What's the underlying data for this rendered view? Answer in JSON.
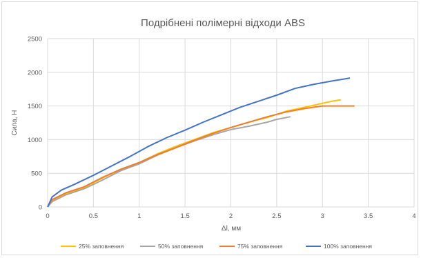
{
  "chart_data": {
    "type": "line",
    "title": "Подрібнені полімерні відходи ABS",
    "xlabel": "Δl, мм",
    "ylabel": "Сила, Н",
    "xlim": [
      0,
      4
    ],
    "ylim": [
      0,
      2500
    ],
    "x_ticks": [
      "0",
      "0.5",
      "1",
      "1.5",
      "2",
      "2.5",
      "3",
      "3.5",
      "4"
    ],
    "y_ticks": [
      "0",
      "500",
      "1000",
      "1500",
      "2000",
      "2500"
    ],
    "grid": true,
    "legend_position": "bottom",
    "series": [
      {
        "name": "25% заповнення",
        "color": "#FFC000",
        "points": [
          [
            0,
            0
          ],
          [
            0.05,
            100
          ],
          [
            0.2,
            200
          ],
          [
            0.4,
            290
          ],
          [
            0.6,
            430
          ],
          [
            0.8,
            560
          ],
          [
            1.0,
            660
          ],
          [
            1.2,
            790
          ],
          [
            1.4,
            900
          ],
          [
            1.6,
            1000
          ],
          [
            1.8,
            1100
          ],
          [
            2.0,
            1180
          ],
          [
            2.2,
            1260
          ],
          [
            2.4,
            1330
          ],
          [
            2.6,
            1420
          ],
          [
            2.8,
            1480
          ],
          [
            3.0,
            1540
          ],
          [
            3.1,
            1570
          ],
          [
            3.2,
            1590
          ]
        ]
      },
      {
        "name": "50% заповнення",
        "color": "#A5A5A5",
        "points": [
          [
            0,
            0
          ],
          [
            0.05,
            80
          ],
          [
            0.2,
            180
          ],
          [
            0.4,
            270
          ],
          [
            0.6,
            400
          ],
          [
            0.8,
            540
          ],
          [
            1.0,
            640
          ],
          [
            1.2,
            770
          ],
          [
            1.4,
            880
          ],
          [
            1.6,
            980
          ],
          [
            1.8,
            1070
          ],
          [
            2.0,
            1150
          ],
          [
            2.2,
            1200
          ],
          [
            2.4,
            1260
          ],
          [
            2.5,
            1300
          ],
          [
            2.65,
            1340
          ]
        ]
      },
      {
        "name": "75% заповнення",
        "color": "#ED7D31",
        "points": [
          [
            0,
            0
          ],
          [
            0.05,
            110
          ],
          [
            0.2,
            210
          ],
          [
            0.4,
            300
          ],
          [
            0.6,
            440
          ],
          [
            0.8,
            560
          ],
          [
            1.0,
            660
          ],
          [
            1.2,
            780
          ],
          [
            1.4,
            880
          ],
          [
            1.6,
            990
          ],
          [
            1.8,
            1090
          ],
          [
            2.0,
            1180
          ],
          [
            2.2,
            1260
          ],
          [
            2.4,
            1340
          ],
          [
            2.6,
            1410
          ],
          [
            2.8,
            1460
          ],
          [
            3.0,
            1500
          ],
          [
            3.2,
            1500
          ],
          [
            3.35,
            1500
          ]
        ]
      },
      {
        "name": "100% заповнення",
        "color": "#4472C4",
        "points": [
          [
            0,
            0
          ],
          [
            0.05,
            150
          ],
          [
            0.15,
            250
          ],
          [
            0.3,
            340
          ],
          [
            0.5,
            470
          ],
          [
            0.7,
            610
          ],
          [
            0.9,
            750
          ],
          [
            1.1,
            900
          ],
          [
            1.3,
            1030
          ],
          [
            1.5,
            1140
          ],
          [
            1.7,
            1260
          ],
          [
            1.9,
            1370
          ],
          [
            2.1,
            1480
          ],
          [
            2.3,
            1570
          ],
          [
            2.5,
            1660
          ],
          [
            2.7,
            1760
          ],
          [
            2.9,
            1820
          ],
          [
            3.1,
            1870
          ],
          [
            3.3,
            1915
          ]
        ]
      }
    ]
  }
}
